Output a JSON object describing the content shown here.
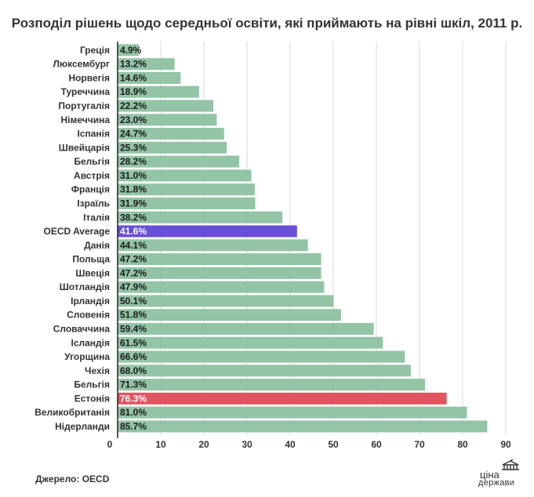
{
  "chart_data": {
    "type": "bar",
    "orientation": "horizontal",
    "title": "Розподіл рішень щодо середньої освіти, які приймають на рівні шкіл, 2011 р.",
    "categories": [
      "Греція",
      "Люксембург",
      "Норвегія",
      "Туреччина",
      "Португалія",
      "Німеччина",
      "Іспанія",
      "Швейцарія",
      "Бельгія",
      "Австрія",
      "Франція",
      "Ізраїль",
      "Італія",
      "OECD Average",
      "Данія",
      "Польща",
      "Швеція",
      "Шотландія",
      "Ірландія",
      "Словенія",
      "Словаччина",
      "Ісландія",
      "Угорщина",
      "Чехія",
      "Бельгія",
      "Естонія",
      "Великобританія",
      "Нідерланди"
    ],
    "values": [
      4.9,
      13.2,
      14.6,
      18.9,
      22.2,
      23.0,
      24.7,
      25.3,
      28.2,
      31.0,
      31.8,
      31.9,
      38.2,
      41.6,
      44.1,
      47.2,
      47.2,
      47.9,
      50.1,
      51.8,
      59.4,
      61.5,
      66.6,
      68.0,
      71.3,
      76.3,
      81.0,
      85.7
    ],
    "value_labels": [
      "4.9%",
      "13.2%",
      "14.6%",
      "18.9%",
      "22.2%",
      "23.0%",
      "24.7%",
      "25.3%",
      "28.2%",
      "31.0%",
      "31.8%",
      "31.9%",
      "38.2%",
      "41.6%",
      "44.1%",
      "47.2%",
      "47.2%",
      "47.9%",
      "50.1%",
      "51.8%",
      "59.4%",
      "61.5%",
      "66.6%",
      "68.0%",
      "71.3%",
      "76.3%",
      "81.0%",
      "85.7%"
    ],
    "x_ticks": [
      "0",
      "10",
      "20",
      "30",
      "40",
      "50",
      "60",
      "70",
      "80",
      "90"
    ],
    "xlim": [
      0,
      90
    ],
    "grid": true,
    "colors": {
      "default": "#93c4a6",
      "OECD Average": "#6a4fd8",
      "Естонія": "#e05560"
    },
    "label_text_colors": {
      "default": "#1a1a1a",
      "highlighted": "#ffffff"
    }
  },
  "source": {
    "label": "Джерело:",
    "value": "OECD"
  },
  "logo": {
    "line1": "ціна",
    "line2": "держави"
  }
}
